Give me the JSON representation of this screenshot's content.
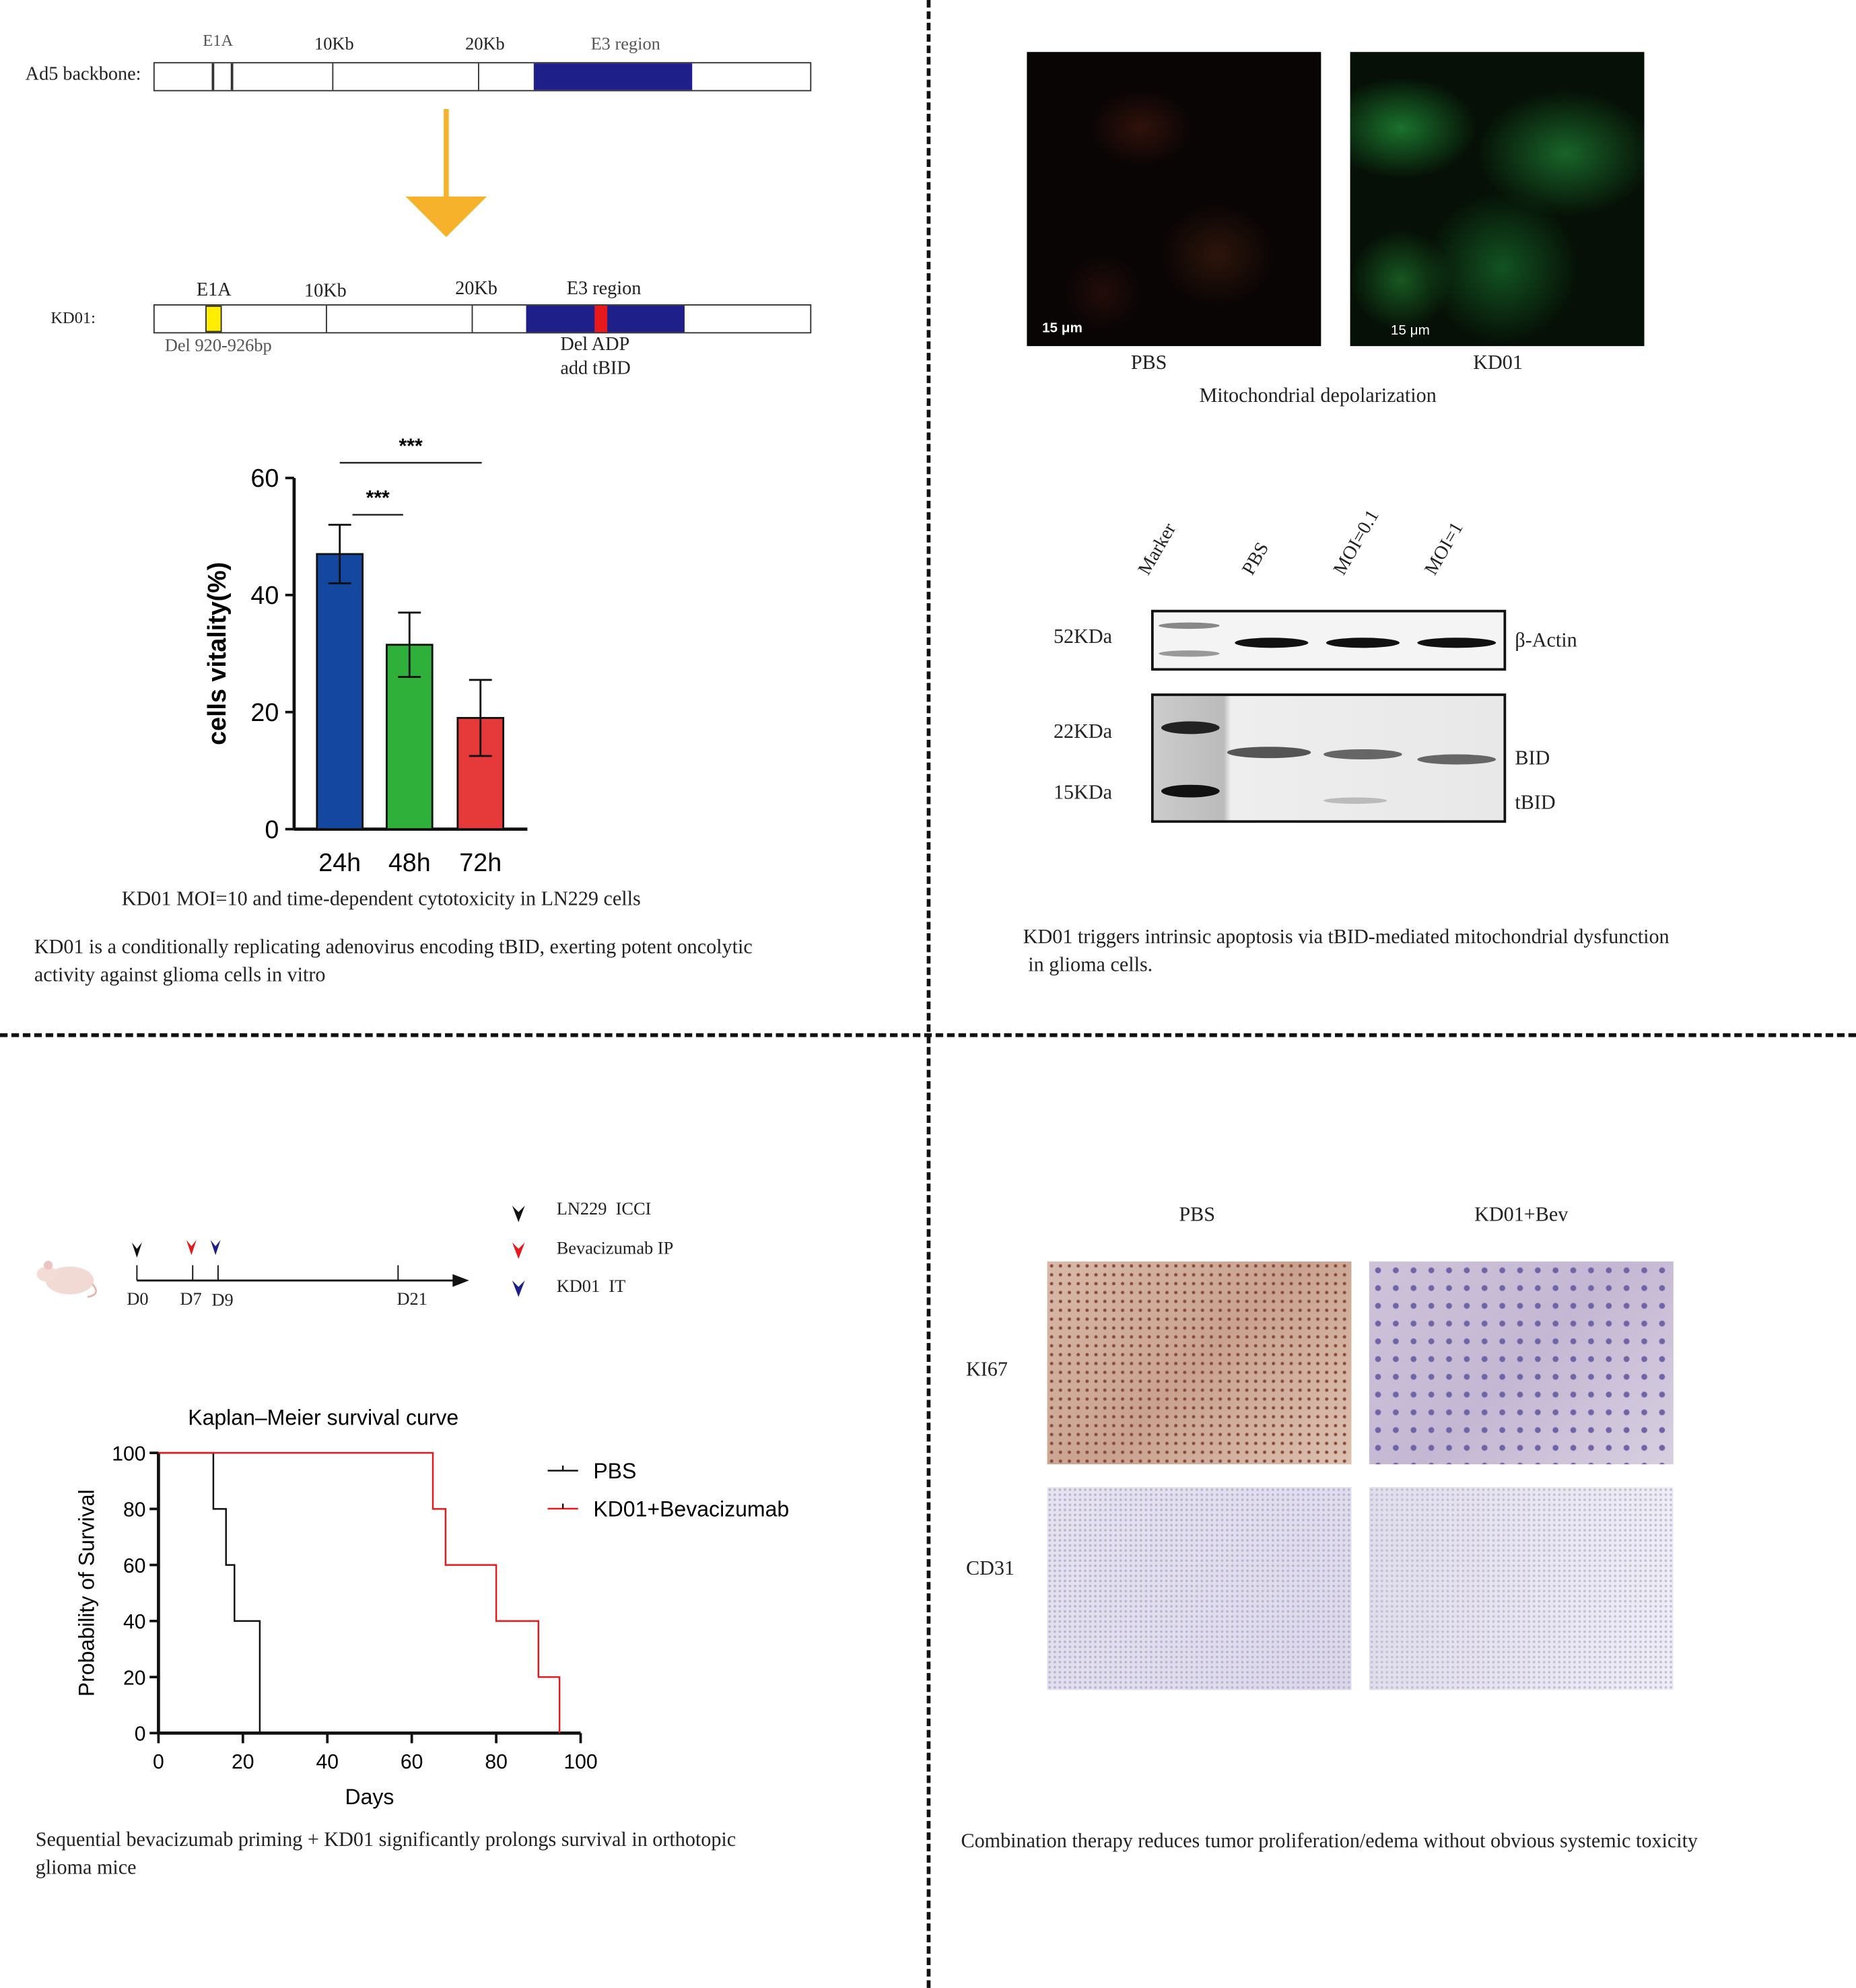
{
  "panel_a": {
    "ad5": {
      "label": "Ad5 backbone:",
      "e1a": "E1A",
      "kb10": "10Kb",
      "kb20": "20Kb",
      "e3": "E3 region"
    },
    "kd01": {
      "label": "KD01:",
      "e1a": "E1A",
      "kb10": "10Kb",
      "kb20": "20Kb",
      "e3": "E3 region",
      "del_e1a": "Del 920-926bp",
      "del_adp": "Del ADP",
      "add_tbid": "add tBID"
    },
    "colors": {
      "e3": "#1f1f8a",
      "e1a_del": "#ffee00",
      "tbid": "#e8191c",
      "arrow": "#f5b22a"
    },
    "bar_chart_caption": "KD01 MOI=10 and time-dependent cytotoxicity in LN229 cells",
    "summary": "KD01 is a conditionally replicating adenovirus encoding tBID, exerting potent oncolytic activity against glioma cells in vitro"
  },
  "panel_b": {
    "images": [
      {
        "label": "PBS",
        "scale": "15 μm"
      },
      {
        "label": "KD01",
        "scale": "15 μm"
      }
    ],
    "images_caption": "Mitochondrial depolarization",
    "blot": {
      "lanes": [
        "Marker",
        "PBS",
        "MOI=0.1",
        "MOI=1"
      ],
      "markers": [
        "52KDa",
        "22KDa",
        "15KDa"
      ],
      "bands": [
        "β-Actin",
        "BID",
        "tBID"
      ]
    },
    "summary_line1": "KD01 triggers intrinsic apoptosis via tBID-mediated mitochondrial dysfunction",
    "summary_line2": "in glioma cells."
  },
  "panel_c": {
    "timeline": {
      "days": [
        "D0",
        "D7",
        "D9",
        "D21"
      ],
      "legend": [
        {
          "label": "LN229  ICCI",
          "color": "#111111"
        },
        {
          "label": "Bevacizumab IP",
          "color": "#e8191c"
        },
        {
          "label": "KD01  IT",
          "color": "#1f1f8a"
        }
      ]
    },
    "summary_line1": "Sequential bevacizumab priming + KD01 significantly prolongs survival in orthotopic",
    "summary_line2": "glioma mice"
  },
  "panel_d": {
    "columns": [
      "PBS",
      "KD01+Bev"
    ],
    "rows": [
      "KI67",
      "CD31"
    ],
    "summary": "Combination therapy reduces tumor proliferation/edema without obvious systemic toxicity"
  },
  "chart_data": [
    {
      "type": "bar",
      "categories": [
        "24h",
        "48h",
        "72h"
      ],
      "values": [
        47,
        31.5,
        19
      ],
      "errors": [
        5,
        5.5,
        6.5
      ],
      "colors": [
        "#1447a0",
        "#2fb03a",
        "#e63a3a"
      ],
      "ylabel": "cells vitality(%)",
      "ylim": [
        0,
        60
      ],
      "yticks": [
        "0",
        "20",
        "40",
        "60"
      ],
      "significance": [
        {
          "pair": [
            "24h",
            "48h"
          ],
          "label": "***"
        },
        {
          "pair": [
            "24h",
            "72h"
          ],
          "label": "***"
        }
      ]
    },
    {
      "type": "line",
      "title": "Kaplan–Meier survival curve",
      "xlabel": "Days",
      "ylabel": "Probability of Survival",
      "xlim": [
        0,
        100
      ],
      "ylim": [
        0,
        100
      ],
      "xticks": [
        "0",
        "20",
        "40",
        "60",
        "80",
        "100"
      ],
      "yticks": [
        "0",
        "20",
        "40",
        "60",
        "80",
        "100"
      ],
      "legend": "top-right",
      "series": [
        {
          "name": "PBS",
          "color": "#111111",
          "x": [
            0,
            13,
            16,
            18,
            24
          ],
          "y": [
            100,
            80,
            60,
            40,
            0
          ]
        },
        {
          "name": "KD01+Bevacizumab",
          "color": "#e8191c",
          "x": [
            0,
            65,
            68,
            80,
            90,
            95
          ],
          "y": [
            100,
            80,
            60,
            40,
            20,
            0
          ]
        }
      ]
    }
  ]
}
